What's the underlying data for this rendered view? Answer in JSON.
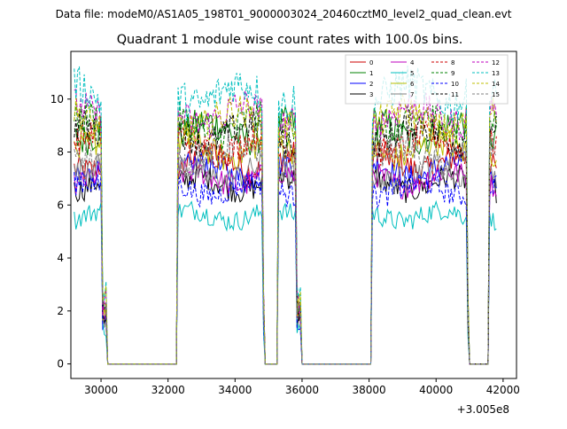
{
  "chart_data": {
    "type": "line",
    "suptitle": "Data file: modeM0/AS1A05_198T01_9000003024_20460cztM0_level2_quad_clean.evt",
    "title": "Quadrant 1 module wise count rates with 100.0s bins.",
    "xlabel": "",
    "ylabel": "",
    "x_offset_label": "+3.005e8",
    "xlim": [
      29100,
      42400
    ],
    "ylim": [
      -0.55,
      11.8
    ],
    "xticks": [
      30000,
      32000,
      34000,
      36000,
      38000,
      40000,
      42000
    ],
    "xtick_labels": [
      "30000",
      "32000",
      "34000",
      "36000",
      "38000",
      "40000",
      "42000"
    ],
    "yticks": [
      0,
      2,
      4,
      6,
      8,
      10
    ],
    "ytick_labels": [
      "0",
      "2",
      "4",
      "6",
      "8",
      "10"
    ],
    "legend_position": "upper right",
    "legend_columns": 4,
    "bin_seconds": 100,
    "segments": [
      {
        "start": 29200,
        "end": 30000,
        "ramp_end": 30200
      },
      {
        "start": 32300,
        "end": 34800,
        "ramp_end": 34900
      },
      {
        "start": 35300,
        "end": 35800,
        "ramp_end": 36000
      },
      {
        "start": 38100,
        "end": 40900,
        "ramp_end": 41000
      },
      {
        "start": 41600,
        "end": 41800,
        "ramp_end": 41800
      }
    ],
    "series": [
      {
        "name": "0",
        "level": 7.6,
        "color": "#cc0000",
        "dash": "solid"
      },
      {
        "name": "1",
        "level": 8.8,
        "color": "#008000",
        "dash": "solid"
      },
      {
        "name": "2",
        "level": 7.3,
        "color": "#0000ff",
        "dash": "solid"
      },
      {
        "name": "3",
        "level": 6.8,
        "color": "#000000",
        "dash": "solid"
      },
      {
        "name": "4",
        "level": 7.0,
        "color": "#bf00bf",
        "dash": "solid"
      },
      {
        "name": "5",
        "level": 5.6,
        "color": "#00bfbf",
        "dash": "solid"
      },
      {
        "name": "6",
        "level": 8.1,
        "color": "#bfbf00",
        "dash": "solid"
      },
      {
        "name": "7",
        "level": 7.2,
        "color": "#808080",
        "dash": "solid"
      },
      {
        "name": "8",
        "level": 8.3,
        "color": "#cc0000",
        "dash": "dashed"
      },
      {
        "name": "9",
        "level": 9.0,
        "color": "#008000",
        "dash": "dashed"
      },
      {
        "name": "10",
        "level": 6.6,
        "color": "#0000ff",
        "dash": "dashed"
      },
      {
        "name": "11",
        "level": 8.7,
        "color": "#000000",
        "dash": "dashed"
      },
      {
        "name": "12",
        "level": 9.4,
        "color": "#bf00bf",
        "dash": "dashed"
      },
      {
        "name": "13",
        "level": 10.2,
        "color": "#00bfbf",
        "dash": "dashed"
      },
      {
        "name": "14",
        "level": 9.2,
        "color": "#bfbf00",
        "dash": "dashed"
      },
      {
        "name": "15",
        "level": 7.9,
        "color": "#808080",
        "dash": "dashed"
      }
    ]
  }
}
